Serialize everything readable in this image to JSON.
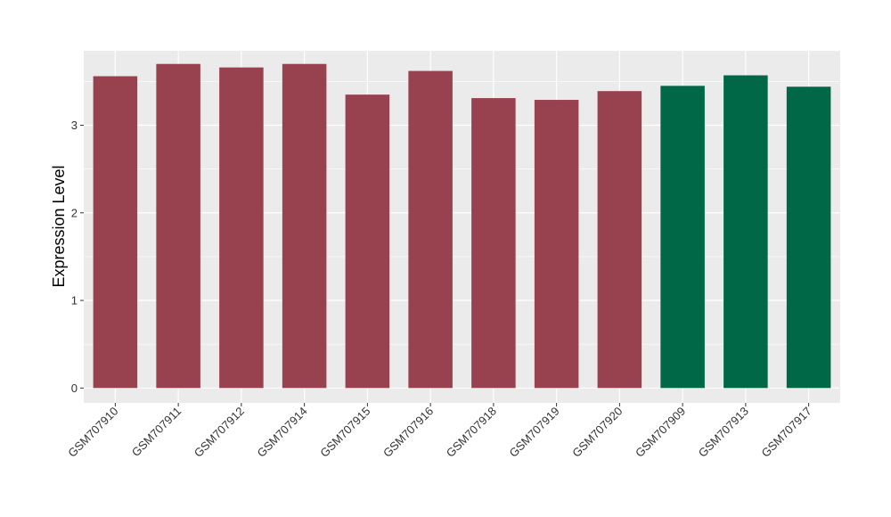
{
  "chart_data": {
    "type": "bar",
    "title": "",
    "xlabel": "",
    "ylabel": "Expression Level",
    "ylim": [
      -0.17,
      3.85
    ],
    "yticks": [
      0,
      1,
      2,
      3
    ],
    "grid": true,
    "legend": "none",
    "colors": {
      "panel_background": "#EBEBEB",
      "gridline": "#FFFFFF",
      "group_1": "#98424F",
      "group_2": "#006846"
    },
    "categories": [
      "GSM707910",
      "GSM707911",
      "GSM707912",
      "GSM707914",
      "GSM707915",
      "GSM707916",
      "GSM707918",
      "GSM707919",
      "GSM707920",
      "GSM707909",
      "GSM707913",
      "GSM707917"
    ],
    "values": [
      3.56,
      3.7,
      3.66,
      3.7,
      3.35,
      3.62,
      3.31,
      3.29,
      3.39,
      3.45,
      3.57,
      3.44
    ],
    "bar_colors": [
      "#98424F",
      "#98424F",
      "#98424F",
      "#98424F",
      "#98424F",
      "#98424F",
      "#98424F",
      "#98424F",
      "#98424F",
      "#006846",
      "#006846",
      "#006846"
    ]
  }
}
